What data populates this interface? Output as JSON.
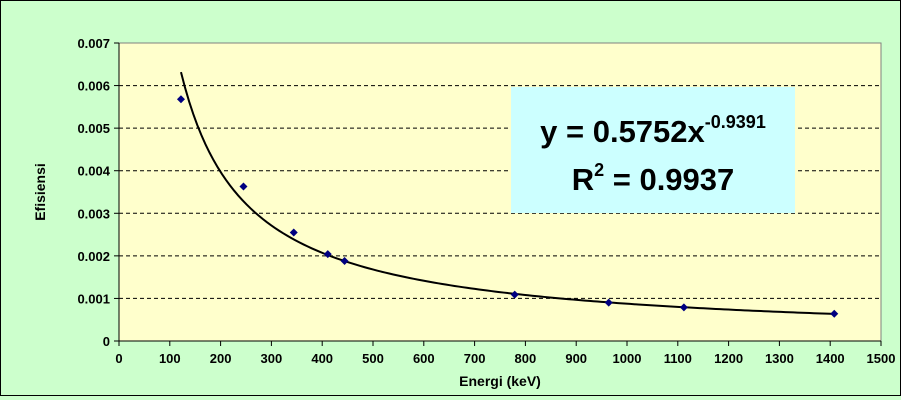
{
  "chart_data": {
    "type": "scatter",
    "xlabel": "Energi (keV)",
    "ylabel": "Efisiensi",
    "xlim": [
      0,
      1500
    ],
    "ylim": [
      0,
      0.007
    ],
    "x_ticks": [
      "0",
      "100",
      "200",
      "300",
      "400",
      "500",
      "600",
      "700",
      "800",
      "900",
      "1000",
      "1100",
      "1200",
      "1300",
      "1400",
      "1500"
    ],
    "y_ticks": [
      "0",
      "0.001",
      "0.002",
      "0.003",
      "0.004",
      "0.005",
      "0.006",
      "0.007"
    ],
    "grid": "horizontal-dashed",
    "series": [
      {
        "x": [
          122,
          245,
          344,
          411,
          444,
          779,
          964,
          1112,
          1408
        ],
        "y": [
          0.00568,
          0.00363,
          0.00255,
          0.00204,
          0.00188,
          0.00109,
          0.0009,
          0.00079,
          0.00064
        ],
        "marker": "diamond",
        "color": "#000080"
      }
    ],
    "trendline": {
      "type": "power",
      "coefficient": 0.5752,
      "exponent": -0.9391,
      "x_range": [
        122,
        1408
      ],
      "color": "#000000"
    },
    "annotation": {
      "equation_prefix": "y = 0.5752x",
      "equation_exponent": "-0.9391",
      "r2_prefix": "R",
      "r2_exponent": "2",
      "r2_suffix": " = 0.9937",
      "background": "#ccffff"
    },
    "colors": {
      "plot_background": "#ffffcc",
      "chart_background": "#ccffcc",
      "gridline": "#000000"
    }
  }
}
